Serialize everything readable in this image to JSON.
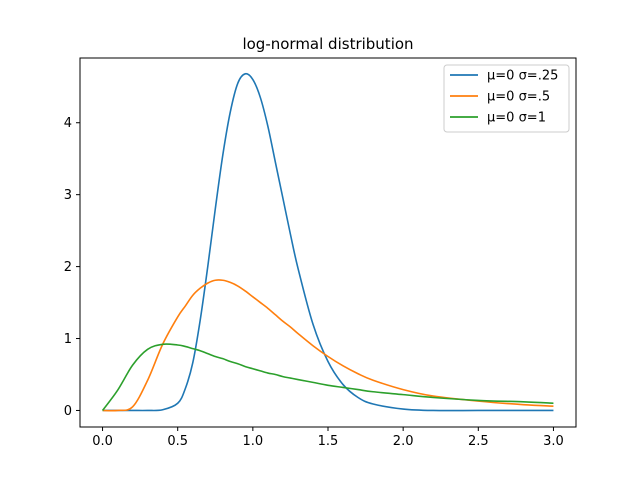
{
  "chart_data": {
    "type": "line",
    "title": "log-normal distribution",
    "xlabel": "",
    "ylabel": "",
    "xlim": [
      -0.15,
      3.15
    ],
    "ylim": [
      -0.23,
      4.9
    ],
    "x_ticks": [
      0.0,
      0.5,
      1.0,
      1.5,
      2.0,
      2.5,
      3.0
    ],
    "x_tick_labels": [
      "0.0",
      "0.5",
      "1.0",
      "1.5",
      "2.0",
      "2.5",
      "3.0"
    ],
    "y_ticks": [
      0,
      1,
      2,
      3,
      4
    ],
    "y_tick_labels": [
      "0",
      "1",
      "2",
      "3",
      "4"
    ],
    "grid": false,
    "legend_position": "top-right",
    "x": [
      0.0,
      0.1,
      0.2,
      0.3,
      0.4,
      0.5,
      0.55,
      0.6,
      0.65,
      0.7,
      0.75,
      0.8,
      0.85,
      0.9,
      0.95,
      1.0,
      1.05,
      1.1,
      1.15,
      1.2,
      1.25,
      1.3,
      1.4,
      1.5,
      1.6,
      1.7,
      1.8,
      2.0,
      2.2,
      2.5,
      2.8,
      3.0
    ],
    "series": [
      {
        "name": "μ=0 σ=.25",
        "color": "#1f77b4",
        "values": [
          0.0,
          0.0,
          0.0,
          0.0,
          0.01,
          0.1,
          0.3,
          0.66,
          1.26,
          2.0,
          2.8,
          3.55,
          4.15,
          4.55,
          4.68,
          4.6,
          4.35,
          3.95,
          3.45,
          2.95,
          2.45,
          1.98,
          1.2,
          0.68,
          0.36,
          0.18,
          0.09,
          0.02,
          0.0,
          0.0,
          0.0,
          0.0
        ]
      },
      {
        "name": "μ=0 σ=.5",
        "color": "#ff7f0e",
        "values": [
          0.0,
          0.0,
          0.05,
          0.42,
          0.92,
          1.3,
          1.45,
          1.6,
          1.7,
          1.77,
          1.81,
          1.81,
          1.78,
          1.73,
          1.66,
          1.58,
          1.5,
          1.42,
          1.33,
          1.24,
          1.16,
          1.07,
          0.9,
          0.75,
          0.62,
          0.51,
          0.42,
          0.29,
          0.2,
          0.13,
          0.08,
          0.06
        ]
      },
      {
        "name": "μ=0 σ=1",
        "color": "#2ca02c",
        "values": [
          0.0,
          0.28,
          0.63,
          0.85,
          0.92,
          0.91,
          0.89,
          0.86,
          0.83,
          0.79,
          0.75,
          0.72,
          0.68,
          0.65,
          0.61,
          0.58,
          0.55,
          0.52,
          0.5,
          0.47,
          0.45,
          0.43,
          0.39,
          0.35,
          0.32,
          0.29,
          0.26,
          0.22,
          0.18,
          0.14,
          0.12,
          0.1
        ]
      }
    ]
  }
}
